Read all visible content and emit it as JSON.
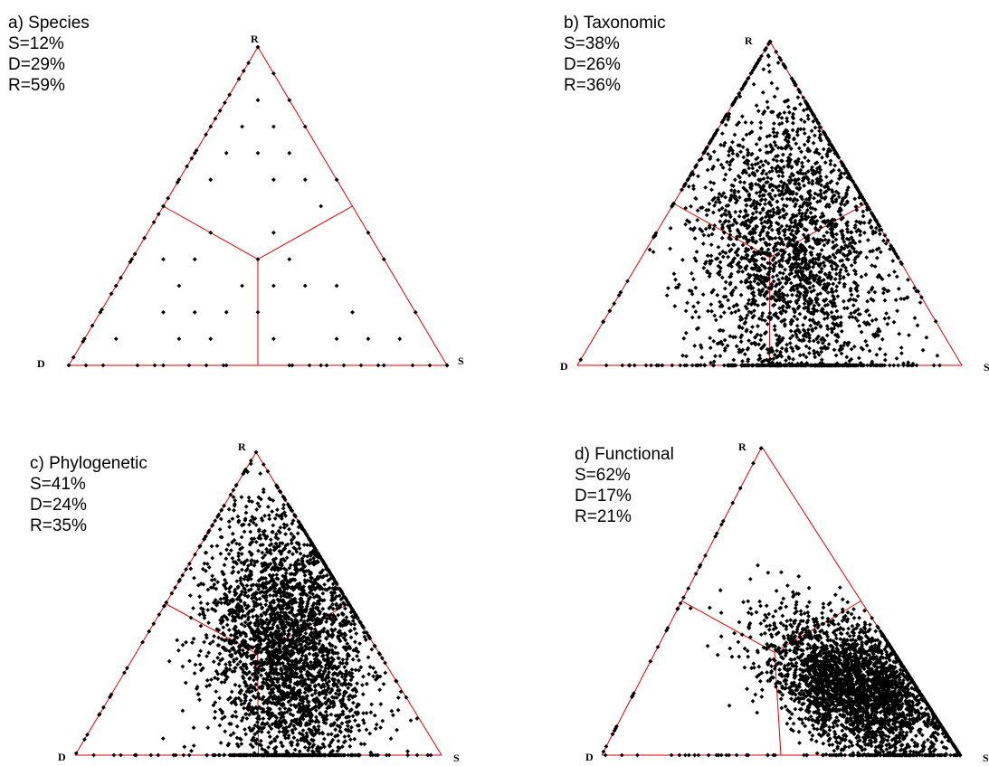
{
  "chart_data": [
    {
      "type": "scatter",
      "subtype": "ternary",
      "title": "a) Species",
      "stats": [
        "S=12%",
        "D=29%",
        "R=59%"
      ],
      "vertices": {
        "top": "R",
        "left": "D",
        "right": "S"
      },
      "colors": {
        "frame": "#e00000",
        "points": "#000000"
      },
      "density": 260,
      "distribution": "lattice",
      "points_sample": [
        {
          "S": 0.0,
          "D": 0.0,
          "R": 1.0
        },
        {
          "S": 0.1,
          "D": 0.1,
          "R": 0.8
        },
        {
          "S": 0.2,
          "D": 0.2,
          "R": 0.6
        },
        {
          "S": 0.3,
          "D": 0.4,
          "R": 0.3
        },
        {
          "S": 0.5,
          "D": 0.5,
          "R": 0.0
        }
      ]
    },
    {
      "type": "scatter",
      "subtype": "ternary",
      "title": "b) Taxonomic",
      "stats": [
        "S=38%",
        "D=26%",
        "R=36%"
      ],
      "vertices": {
        "top": "R",
        "left": "D",
        "right": "S"
      },
      "colors": {
        "frame": "#e00000",
        "points": "#000000"
      },
      "density": 2600,
      "distribution": "spread",
      "points_sample": [
        {
          "S": 0.4,
          "D": 0.2,
          "R": 0.4
        },
        {
          "S": 0.3,
          "D": 0.3,
          "R": 0.4
        },
        {
          "S": 0.5,
          "D": 0.3,
          "R": 0.2
        },
        {
          "S": 0.2,
          "D": 0.5,
          "R": 0.3
        }
      ]
    },
    {
      "type": "scatter",
      "subtype": "ternary",
      "title": "c) Phylogenetic",
      "stats": [
        "S=41%",
        "D=24%",
        "R=35%"
      ],
      "vertices": {
        "top": "R",
        "left": "D",
        "right": "S"
      },
      "colors": {
        "frame": "#e00000",
        "points": "#000000"
      },
      "density": 3200,
      "distribution": "dense",
      "points_sample": [
        {
          "S": 0.45,
          "D": 0.2,
          "R": 0.35
        },
        {
          "S": 0.5,
          "D": 0.25,
          "R": 0.25
        },
        {
          "S": 0.35,
          "D": 0.3,
          "R": 0.35
        }
      ]
    },
    {
      "type": "scatter",
      "subtype": "ternary",
      "title": "d) Functional",
      "stats": [
        "S=62%",
        "D=17%",
        "R=21%"
      ],
      "vertices": {
        "top": "R",
        "left": "D",
        "right": "S"
      },
      "colors": {
        "frame": "#e00000",
        "points": "#000000"
      },
      "density": 3000,
      "distribution": "S-heavy",
      "points_sample": [
        {
          "S": 0.65,
          "D": 0.15,
          "R": 0.2
        },
        {
          "S": 0.7,
          "D": 0.1,
          "R": 0.2
        },
        {
          "S": 0.55,
          "D": 0.2,
          "R": 0.25
        }
      ]
    }
  ]
}
